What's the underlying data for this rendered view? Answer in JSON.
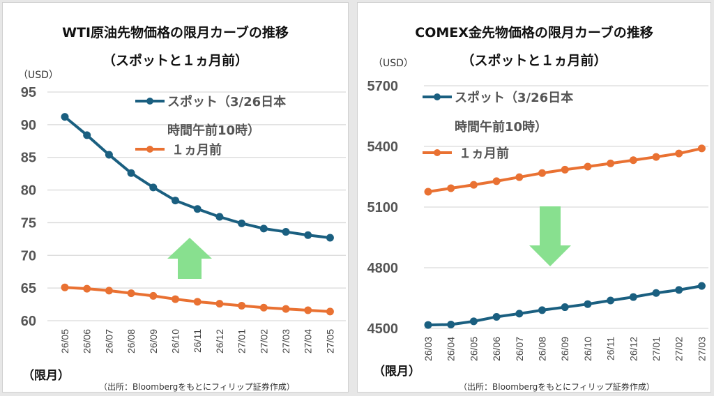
{
  "charts": [
    {
      "title_line1": "WTI原油先物価格の限月カーブの推移",
      "title_line2": "（スポットと１ヵ月前）",
      "y_unit": "（USD）",
      "x_unit": "（限月）",
      "source": "（出所：Bloombergをもとにフィリップ証券作成）",
      "legend": [
        {
          "line1": "スポット（3/26日本",
          "line2": "時間午前10時）"
        },
        {
          "line1": "１ヵ月前"
        }
      ],
      "arrow": "up"
    },
    {
      "title_line1": "COMEX金先物価格の限月カーブの推移",
      "title_line2": "（スポットと１ヵ月前）",
      "y_unit": "（USD）",
      "x_unit": "（限月）",
      "source": "（出所：Bloombergをもとにフィリップ証券作成）",
      "legend": [
        {
          "line1": "スポット（3/26日本",
          "line2": "時間午前10時）"
        },
        {
          "line1": "１ヵ月前"
        }
      ],
      "arrow": "down"
    }
  ],
  "colors": {
    "spot": "#1a5f80",
    "month_ago": "#e97132",
    "arrow": "#88e08f",
    "grid": "#d9d9d9"
  },
  "chart_data": [
    {
      "type": "line",
      "title": "WTI原油先物価格の限月カーブの推移（スポットと１ヵ月前）",
      "xlabel": "（限月）",
      "ylabel": "（USD）",
      "ylim": [
        60,
        95
      ],
      "yticks": [
        "95",
        "90",
        "85",
        "80",
        "75",
        "70",
        "65",
        "60"
      ],
      "ytick_values": [
        95,
        90,
        85,
        80,
        75,
        70,
        65,
        60
      ],
      "categories": [
        "26/05",
        "26/06",
        "26/07",
        "26/08",
        "26/09",
        "26/10",
        "26/11",
        "26/12",
        "27/01",
        "27/02",
        "27/03",
        "27/04",
        "27/05"
      ],
      "grid": true,
      "legend_position": "top-right",
      "series": [
        {
          "name": "スポット（3/26日本時間午前10時）",
          "values": [
            91.2,
            88.4,
            85.4,
            82.6,
            80.4,
            78.4,
            77.1,
            75.9,
            74.9,
            74.1,
            73.6,
            73.1,
            72.7
          ]
        },
        {
          "name": "１ヵ月前",
          "values": [
            65.1,
            64.9,
            64.6,
            64.2,
            63.8,
            63.3,
            62.9,
            62.6,
            62.3,
            62.0,
            61.8,
            61.6,
            61.4
          ]
        }
      ]
    },
    {
      "type": "line",
      "title": "COMEX金先物価格の限月カーブの推移（スポットと１ヵ月前）",
      "xlabel": "（限月）",
      "ylabel": "（USD）",
      "ylim": [
        4500,
        5700
      ],
      "yticks": [
        "5700",
        "5400",
        "5100",
        "4800",
        "4500"
      ],
      "ytick_values": [
        5700,
        5400,
        5100,
        4800,
        4500
      ],
      "categories": [
        "26/03",
        "26/04",
        "26/05",
        "26/06",
        "26/07",
        "26/08",
        "26/09",
        "26/10",
        "26/11",
        "26/12",
        "27/01",
        "27/02",
        "27/03"
      ],
      "grid": true,
      "legend_position": "top-left",
      "series": [
        {
          "name": "スポット（3/26日本時間午前10時）",
          "values": [
            4517,
            4519,
            4535,
            4557,
            4573,
            4590,
            4605,
            4620,
            4638,
            4655,
            4675,
            4690,
            4710
          ]
        },
        {
          "name": "１ヵ月前",
          "values": [
            5176,
            5193,
            5210,
            5228,
            5248,
            5268,
            5285,
            5300,
            5316,
            5332,
            5348,
            5365,
            5390
          ]
        }
      ]
    }
  ]
}
